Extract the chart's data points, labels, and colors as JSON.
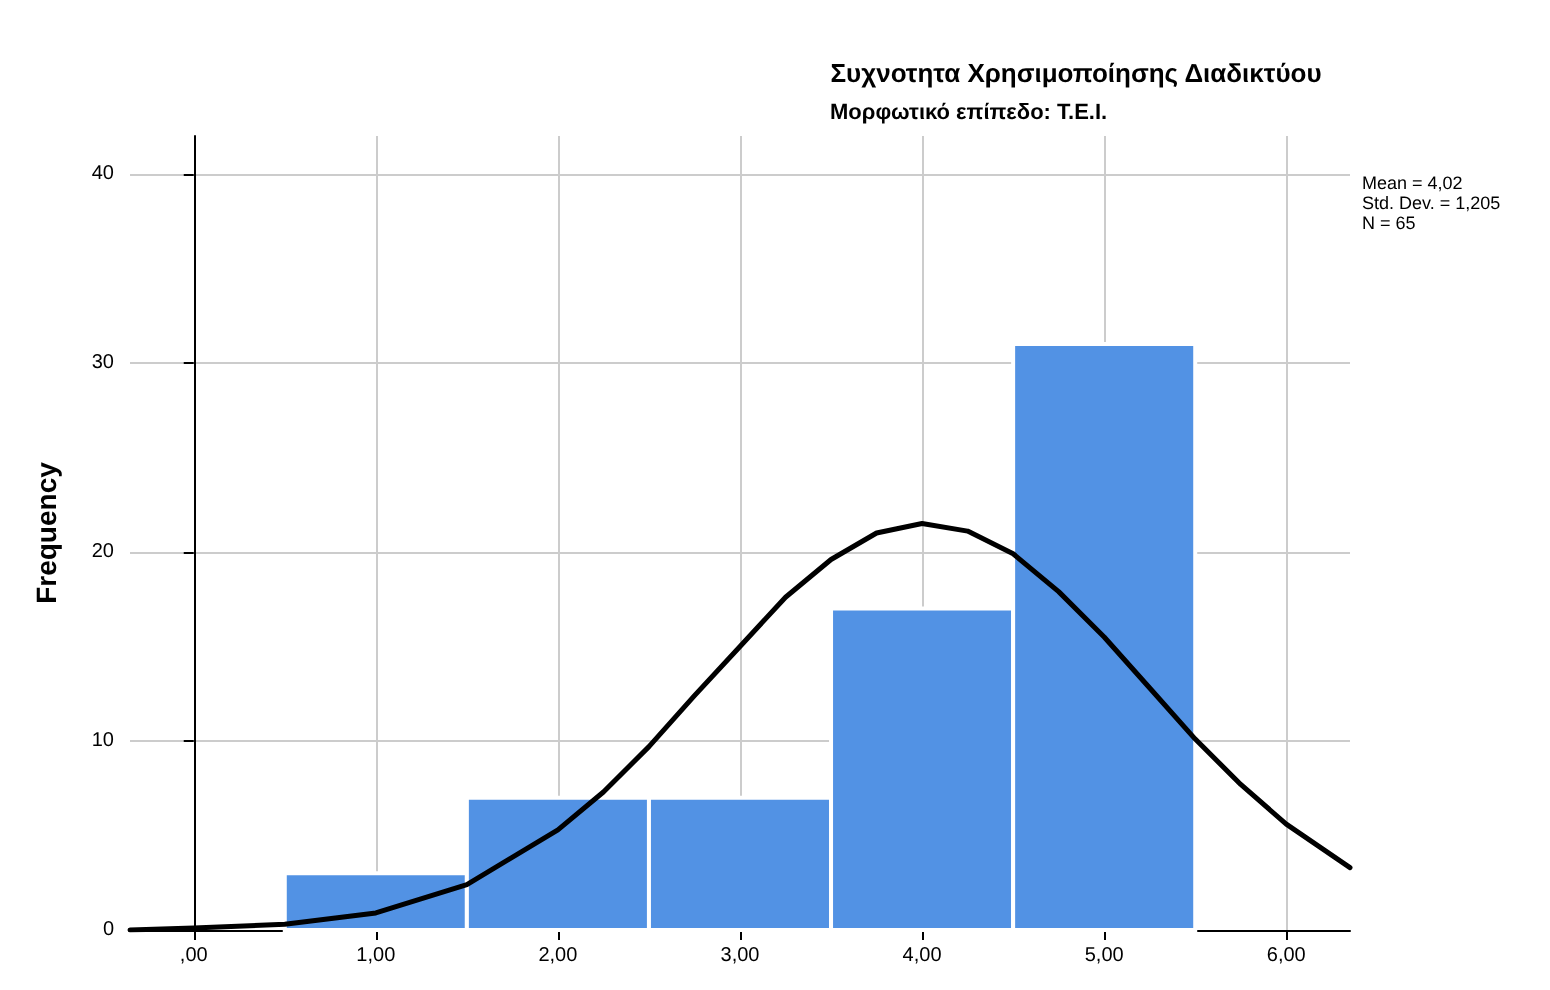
{
  "chart_data": {
    "type": "histogram",
    "title": "Συχνοτητα Χρησιμοποίησης Διαδικτύου",
    "subtitle": "Μορφωτικό επίπεδο: Τ.Ε.Ι.",
    "ylabel": "Frequency",
    "bins": [
      0.5,
      1.5,
      2.5,
      3.5,
      4.5,
      5.5
    ],
    "values": [
      3,
      7,
      7,
      17,
      31
    ],
    "color": "#5292e4",
    "series": [
      {
        "type": "line",
        "color": "#000000",
        "x": [
          -0.35,
          0,
          0.5,
          1,
          1.5,
          2,
          2.25,
          2.5,
          2.75,
          3,
          3.25,
          3.5,
          3.75,
          4,
          4.25,
          4.5,
          4.75,
          5,
          5.25,
          5.5,
          5.75,
          6,
          6.35
        ],
        "values": [
          0.0,
          0.1,
          0.3,
          0.9,
          2.4,
          5.3,
          7.3,
          9.7,
          12.4,
          15.0,
          17.6,
          19.6,
          21.0,
          21.5,
          21.1,
          19.9,
          17.9,
          15.5,
          12.8,
          10.1,
          7.7,
          5.6,
          3.3
        ]
      }
    ],
    "xlim": [
      -0.35,
      6.35
    ],
    "xticks": [
      {
        "value": 0,
        "label": ",00"
      },
      {
        "value": 1,
        "label": "1,00"
      },
      {
        "value": 2,
        "label": "2,00"
      },
      {
        "value": 3,
        "label": "3,00"
      },
      {
        "value": 4,
        "label": "4,00"
      },
      {
        "value": 5,
        "label": "5,00"
      },
      {
        "value": 6,
        "label": "6,00"
      }
    ],
    "ylim": [
      0,
      42
    ],
    "yticks": [
      0,
      10,
      20,
      30,
      40
    ],
    "grid": true,
    "marker": "none",
    "line_style": "solid",
    "annotations": [
      "Mean = 4,02",
      "Std. Dev. = 1,205",
      "N = 65"
    ]
  }
}
